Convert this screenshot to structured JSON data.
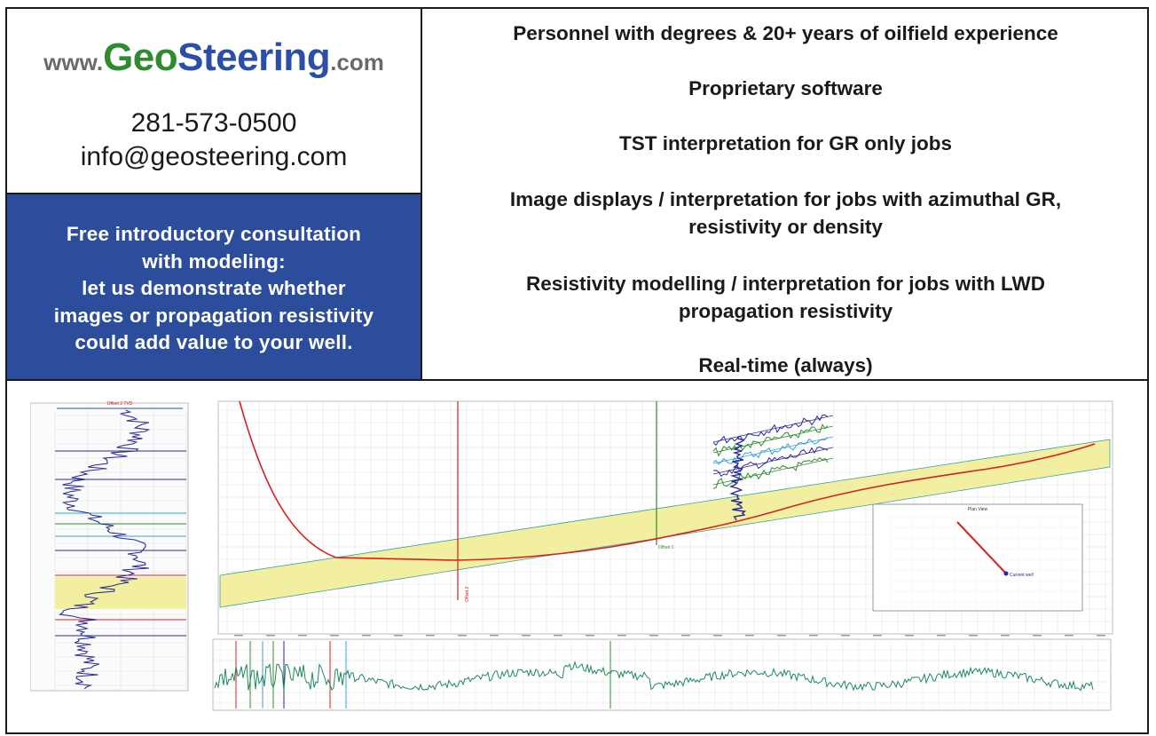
{
  "header": {
    "logo": {
      "prefix": "www.",
      "part1": "Geo",
      "part2": "Steering",
      "suffix": ".com"
    },
    "phone": "281-573-0500",
    "email": "info@geosteering.com"
  },
  "promo": {
    "lines": [
      "Free introductory consultation",
      "with modeling:",
      "let us demonstrate whether",
      "images or propagation resistivity",
      "could add value to your well."
    ]
  },
  "services": {
    "items": [
      {
        "line1": "Personnel with degrees &  20+ years of oilfield experience",
        "line2": ""
      },
      {
        "line1": "Proprietary software",
        "line2": ""
      },
      {
        "line1": "TST interpretation for GR only jobs",
        "line2": ""
      },
      {
        "line1": "Image displays / interpretation for jobs with azimuthal GR,",
        "line2": "resistivity or density"
      },
      {
        "line1": "Resistivity modelling / interpretation  for jobs with LWD",
        "line2": "propagation resistivity"
      },
      {
        "line1": "Real-time (always)",
        "line2": ""
      }
    ]
  },
  "figure": {
    "log_panel_title": "Offset 2 TVD",
    "plan_view_title": "Plan View",
    "plan_view_label": "Current well",
    "offset_labels": [
      "Offset 2",
      "Offset 1"
    ],
    "colors": {
      "target_zone": "#f2f0a0",
      "wellpath": "#d62020",
      "gamma_log": "#2a2a9a",
      "gr_trace": "#1e8a5a",
      "grid": "#dcdcdc",
      "brand_blue": "#2c4c9c",
      "brand_green": "#2e8b2e"
    }
  }
}
